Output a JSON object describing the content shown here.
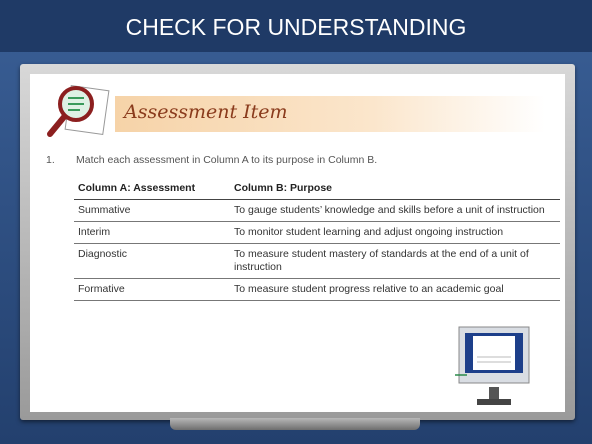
{
  "header": {
    "title": "CHECK FOR UNDERSTANDING"
  },
  "section": {
    "title": "Assessment Item"
  },
  "question": {
    "number": "1.",
    "text": "Match each assessment in Column A to its purpose in Column B."
  },
  "table": {
    "headers": [
      "Column A: Assessment",
      "Column B: Purpose"
    ],
    "rows": [
      [
        "Summative",
        "To gauge students’ knowledge and skills before a unit of instruction"
      ],
      [
        "Interim",
        "To monitor student learning and adjust ongoing instruction"
      ],
      [
        "Diagnostic",
        "To measure student mastery of standards at the end of a unit of instruction"
      ],
      [
        "Formative",
        "To measure student progress relative to an academic goal"
      ]
    ]
  }
}
